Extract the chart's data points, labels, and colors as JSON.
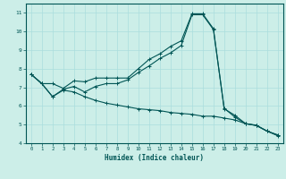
{
  "xlabel": "Humidex (Indice chaleur)",
  "background_color": "#cceee8",
  "grid_color": "#aadddd",
  "line_color": "#005555",
  "xlim": [
    -0.5,
    23.5
  ],
  "ylim": [
    4,
    11.5
  ],
  "yticks": [
    4,
    5,
    6,
    7,
    8,
    9,
    10,
    11
  ],
  "xticks": [
    0,
    1,
    2,
    3,
    4,
    5,
    6,
    7,
    8,
    9,
    10,
    11,
    12,
    13,
    14,
    15,
    16,
    17,
    18,
    19,
    20,
    21,
    22,
    23
  ],
  "series1_x": [
    0,
    1,
    2,
    3,
    4,
    5,
    6,
    7,
    8,
    9,
    10,
    11,
    12,
    13,
    14,
    15,
    16,
    17,
    18,
    19,
    20,
    21,
    22,
    23
  ],
  "series1_y": [
    7.7,
    7.2,
    6.5,
    6.85,
    6.75,
    6.5,
    6.3,
    6.15,
    6.05,
    5.95,
    5.85,
    5.8,
    5.75,
    5.65,
    5.6,
    5.55,
    5.45,
    5.45,
    5.35,
    5.25,
    5.05,
    4.95,
    4.65,
    4.45
  ],
  "series2_x": [
    0,
    1,
    2,
    3,
    4,
    5,
    6,
    7,
    8,
    9,
    10,
    11,
    12,
    13,
    14,
    15,
    16,
    17,
    18,
    19,
    20,
    21,
    22,
    23
  ],
  "series2_y": [
    7.7,
    7.2,
    7.2,
    6.95,
    7.35,
    7.3,
    7.5,
    7.5,
    7.5,
    7.5,
    8.0,
    8.5,
    8.8,
    9.2,
    9.5,
    10.95,
    10.95,
    10.15,
    5.85,
    5.5,
    5.05,
    4.95,
    4.65,
    4.4
  ],
  "series3_x": [
    0,
    1,
    2,
    3,
    4,
    5,
    6,
    7,
    8,
    9,
    10,
    11,
    12,
    13,
    14,
    15,
    16,
    17,
    18,
    19,
    20,
    21,
    22,
    23
  ],
  "series3_y": [
    7.7,
    7.2,
    6.5,
    6.9,
    7.05,
    6.75,
    7.05,
    7.2,
    7.2,
    7.4,
    7.8,
    8.15,
    8.55,
    8.85,
    9.25,
    10.9,
    10.9,
    10.1,
    5.88,
    5.4,
    5.05,
    4.97,
    4.65,
    4.42
  ]
}
